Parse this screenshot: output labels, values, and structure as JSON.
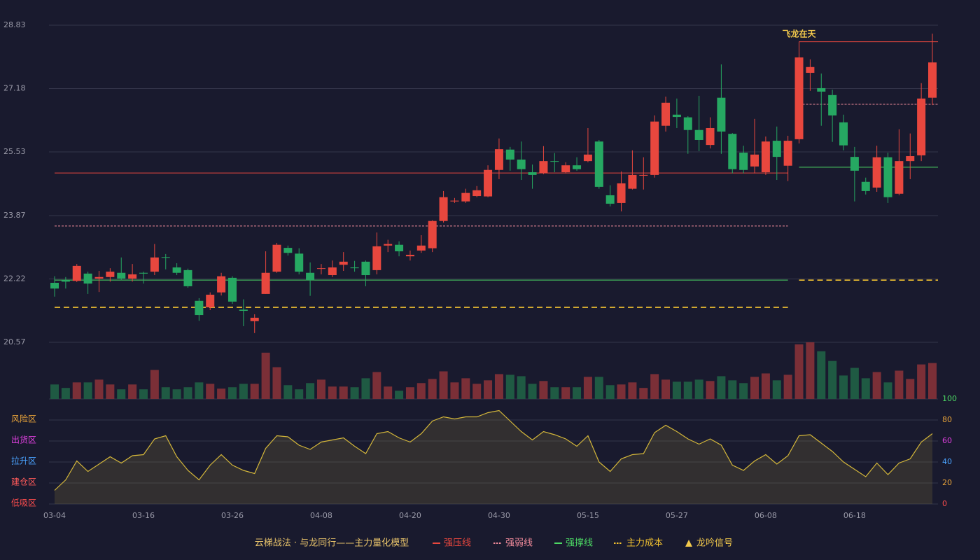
{
  "chart_data": {
    "type": "candlestick",
    "title": "云梯战法 · 与龙同行——主力量化模型",
    "categories": [
      "03-04",
      null,
      null,
      null,
      null,
      null,
      null,
      null,
      "03-16",
      null,
      null,
      null,
      null,
      null,
      null,
      null,
      "03-26",
      null,
      null,
      null,
      null,
      null,
      null,
      null,
      "04-08",
      null,
      null,
      null,
      null,
      null,
      null,
      null,
      "04-20",
      null,
      null,
      null,
      null,
      null,
      null,
      null,
      "04-30",
      null,
      null,
      null,
      null,
      null,
      null,
      null,
      "05-15",
      null,
      null,
      null,
      null,
      null,
      null,
      null,
      "05-27",
      null,
      null,
      null,
      null,
      null,
      null,
      null,
      "06-08",
      null,
      null,
      null,
      null,
      null,
      null,
      null,
      "06-18",
      null,
      null,
      null,
      null,
      null,
      null,
      null
    ],
    "open": [
      22.12,
      22.19,
      22.17,
      22.36,
      22.23,
      22.27,
      22.38,
      22.23,
      22.38,
      22.41,
      22.79,
      22.52,
      22.45,
      21.65,
      21.48,
      21.87,
      22.25,
      21.42,
      21.12,
      21.83,
      22.41,
      23.03,
      22.88,
      22.38,
      22.49,
      22.32,
      22.59,
      22.52,
      22.67,
      22.45,
      23.09,
      23.11,
      22.81,
      22.96,
      23.02,
      23.73,
      24.24,
      24.24,
      24.38,
      24.37,
      25.06,
      25.59,
      25.33,
      25.0,
      24.98,
      25.29,
      25.0,
      25.18,
      25.29,
      25.8,
      24.4,
      24.2,
      24.57,
      24.91,
      24.93,
      26.21,
      26.5,
      26.43,
      26.1,
      25.71,
      26.94,
      26.0,
      25.51,
      25.15,
      25.0,
      25.82,
      25.17,
      25.86,
      27.59,
      27.19,
      27.01,
      26.3,
      25.4,
      24.75,
      24.6,
      25.39,
      24.44,
      25.29,
      25.44,
      26.94
    ],
    "high": [
      22.29,
      22.27,
      22.61,
      22.41,
      22.43,
      22.5,
      22.78,
      22.61,
      22.41,
      23.13,
      22.87,
      22.63,
      22.49,
      21.72,
      21.87,
      22.38,
      22.29,
      21.69,
      21.3,
      22.94,
      23.16,
      23.09,
      23.02,
      22.65,
      22.61,
      22.7,
      22.92,
      22.69,
      22.7,
      23.43,
      23.24,
      23.2,
      22.96,
      23.36,
      23.75,
      24.51,
      24.33,
      24.57,
      24.64,
      25.18,
      25.88,
      25.66,
      25.8,
      25.2,
      25.68,
      25.5,
      25.26,
      25.39,
      26.15,
      25.84,
      24.66,
      25.02,
      25.57,
      25.39,
      26.48,
      26.97,
      26.92,
      26.46,
      26.99,
      26.43,
      27.81,
      26.02,
      25.69,
      26.39,
      25.93,
      26.19,
      25.95,
      28.1,
      27.94,
      27.57,
      27.15,
      26.5,
      25.66,
      24.86,
      25.69,
      25.51,
      26.12,
      26.01,
      27.32,
      28.61
    ],
    "low": [
      21.76,
      21.97,
      22.14,
      21.83,
      21.88,
      22.15,
      22.19,
      22.15,
      22.1,
      22.32,
      22.47,
      22.32,
      21.99,
      21.13,
      21.41,
      21.79,
      21.57,
      20.99,
      20.81,
      21.83,
      22.38,
      22.83,
      22.34,
      21.78,
      22.34,
      22.27,
      22.43,
      22.41,
      22.03,
      22.34,
      22.92,
      22.81,
      22.7,
      22.9,
      22.92,
      23.69,
      24.2,
      24.2,
      24.35,
      24.35,
      24.82,
      25.04,
      24.8,
      24.57,
      24.95,
      25.0,
      24.97,
      25.04,
      25.26,
      24.57,
      24.11,
      23.98,
      24.55,
      24.55,
      24.86,
      26.06,
      26.15,
      25.48,
      25.55,
      25.62,
      25.48,
      24.97,
      24.97,
      24.97,
      24.93,
      24.8,
      24.77,
      25.75,
      27.12,
      26.21,
      25.79,
      25.57,
      24.24,
      24.42,
      24.49,
      24.2,
      24.4,
      24.82,
      25.29,
      26.75
    ],
    "close": [
      21.97,
      22.15,
      22.56,
      22.1,
      22.27,
      22.41,
      22.23,
      22.34,
      22.36,
      22.78,
      22.78,
      22.38,
      22.03,
      21.28,
      21.81,
      22.29,
      21.63,
      21.39,
      21.21,
      22.38,
      23.11,
      22.9,
      22.41,
      22.19,
      22.5,
      22.52,
      22.67,
      22.5,
      22.32,
      23.07,
      23.13,
      22.94,
      22.85,
      23.09,
      23.73,
      24.35,
      24.26,
      24.46,
      24.53,
      25.06,
      25.6,
      25.33,
      25.08,
      24.93,
      25.29,
      25.28,
      25.18,
      25.08,
      25.46,
      24.62,
      24.18,
      24.71,
      24.93,
      24.93,
      26.32,
      26.81,
      26.44,
      26.1,
      25.84,
      26.15,
      26.06,
      25.08,
      25.06,
      25.46,
      25.8,
      25.4,
      25.82,
      27.99,
      27.74,
      27.1,
      26.48,
      25.7,
      25.04,
      24.51,
      25.39,
      24.35,
      25.29,
      25.42,
      26.92,
      27.86
    ],
    "up_color": "#e8473e",
    "down_color": "#26a862",
    "ylim": [
      20.57,
      28.83
    ],
    "yticks": [
      20.57,
      22.22,
      23.87,
      25.53,
      27.18,
      28.83
    ],
    "grid": true,
    "lines": [
      {
        "name": "强压线",
        "color": "#e8473e",
        "style": "solid",
        "segments": [
          {
            "from": 0,
            "to": 66,
            "value": 24.98
          },
          {
            "from": 67,
            "to": 79,
            "value": 28.4
          }
        ]
      },
      {
        "name": "强弱线",
        "color": "#f08a9a",
        "style": "dashed",
        "segments": [
          {
            "from": 0,
            "to": 66,
            "value": 23.6
          },
          {
            "from": 67,
            "to": 79,
            "value": 26.77
          }
        ]
      },
      {
        "name": "强撑线",
        "color": "#4cd964",
        "style": "solid",
        "segments": [
          {
            "from": 0,
            "to": 66,
            "value": 22.19
          },
          {
            "from": 67,
            "to": 79,
            "value": 25.13
          }
        ]
      },
      {
        "name": "主力成本",
        "color": "#f2c230",
        "style": "dashed",
        "segments": [
          {
            "from": 0,
            "to": 66,
            "value": 21.48
          },
          {
            "from": 67,
            "to": 79,
            "value": 22.19
          }
        ]
      }
    ],
    "signal": {
      "name": "龙吟信号",
      "color": "#f2c94c",
      "points": [
        {
          "index": 67,
          "label": "飞龙在天"
        }
      ]
    },
    "volume": {
      "values": [
        21,
        16,
        24,
        24,
        28,
        21,
        14,
        21,
        14,
        42,
        17,
        14,
        17,
        24,
        22,
        15,
        17,
        22,
        22,
        67,
        46,
        20,
        14,
        23,
        28,
        18,
        18,
        17,
        30,
        39,
        18,
        12,
        17,
        23,
        29,
        40,
        24,
        30,
        22,
        27,
        36,
        35,
        33,
        22,
        26,
        17,
        17,
        17,
        32,
        32,
        20,
        21,
        24,
        16,
        36,
        28,
        25,
        25,
        28,
        26,
        33,
        27,
        23,
        32,
        37,
        27,
        35,
        79,
        82,
        69,
        55,
        34,
        45,
        30,
        39,
        24,
        41,
        29,
        50,
        52
      ],
      "ylim": [
        0,
        82
      ],
      "up_color": "#7b2f37",
      "down_color": "#1f5a43"
    },
    "oscillator": {
      "values": [
        13,
        23,
        41,
        31,
        38,
        45,
        39,
        46,
        47,
        62,
        65,
        45,
        32,
        23,
        37,
        47,
        37,
        32,
        29,
        53,
        65,
        64,
        56,
        52,
        59,
        61,
        63,
        55,
        48,
        67,
        69,
        63,
        59,
        67,
        79,
        83,
        81,
        83,
        83,
        87,
        89,
        79,
        69,
        61,
        69,
        66,
        62,
        55,
        65,
        40,
        31,
        43,
        47,
        48,
        68,
        75,
        69,
        62,
        57,
        62,
        56,
        37,
        32,
        41,
        47,
        38,
        46,
        65,
        66,
        58,
        50,
        40,
        33,
        26,
        39,
        28,
        39,
        43,
        59,
        67
      ],
      "color": "#d4b73a",
      "ylim": [
        0,
        100
      ],
      "yticks": [
        0,
        20,
        40,
        60,
        80,
        100
      ],
      "ytick_colors": [
        "#ff4d4d",
        "#e8a33a",
        "#4aa3ff",
        "#e040e0",
        "#e8a33a",
        "#4cd964"
      ],
      "zones": [
        {
          "value": 80,
          "label": "风险区",
          "color": "#e8a33a"
        },
        {
          "value": 60,
          "label": "出货区",
          "color": "#e040e0"
        },
        {
          "value": 40,
          "label": "拉升区",
          "color": "#4aa3ff"
        },
        {
          "value": 20,
          "label": "建仓区",
          "color": "#ff5a5a"
        },
        {
          "value": 0,
          "label": "低吸区",
          "color": "#ff4d4d"
        }
      ]
    }
  }
}
